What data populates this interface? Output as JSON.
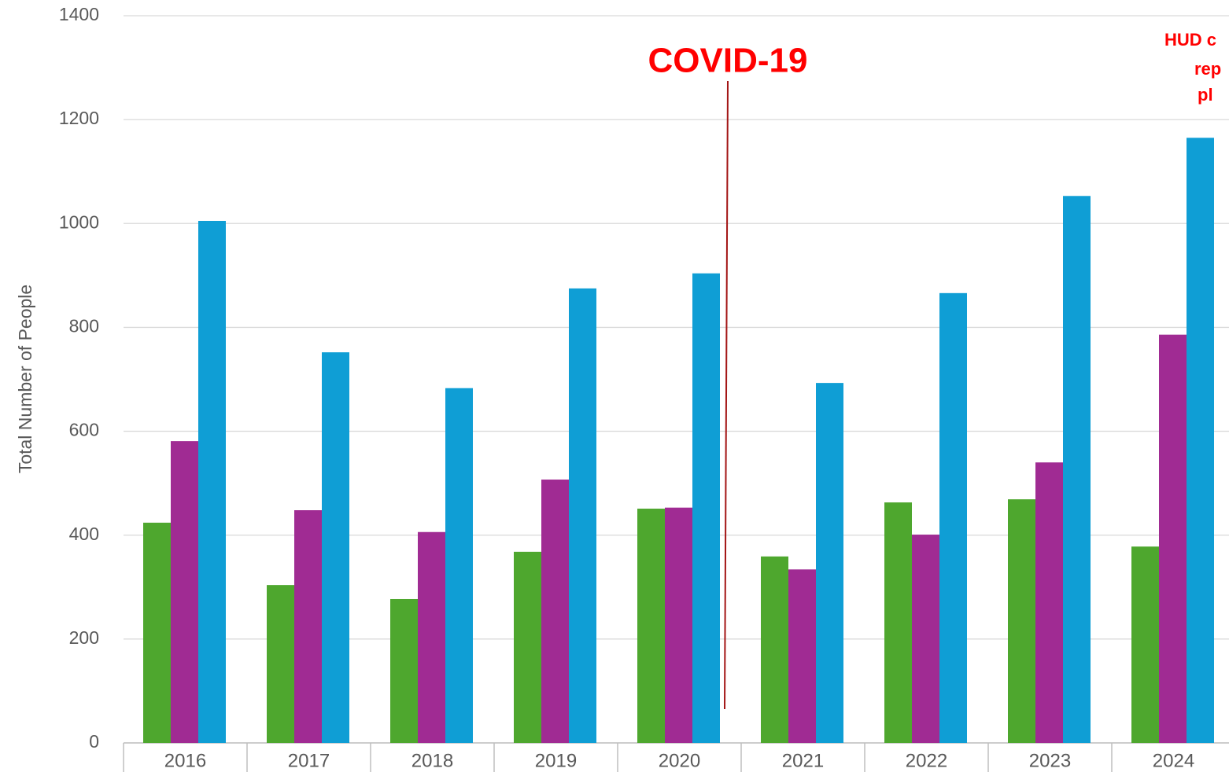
{
  "chart_data": {
    "type": "bar",
    "y_label": "Total Number of People",
    "annotations": [
      "COVID-19",
      "HUD c",
      "rep",
      "pl"
    ],
    "categories": [
      "2016",
      "2017",
      "2018",
      "2019",
      "2020",
      "2021",
      "2022",
      "2023",
      "2024"
    ],
    "series": [
      {
        "color": "#4ea72e",
        "values": [
          424,
          304,
          277,
          368,
          451,
          359,
          463,
          469,
          378
        ]
      },
      {
        "color": "#a02b93",
        "values": [
          581,
          448,
          406,
          507,
          453,
          334,
          401,
          540,
          786
        ]
      },
      {
        "color": "#0f9ed5",
        "values": [
          1005,
          752,
          683,
          875,
          904,
          693,
          866,
          1053,
          1165
        ]
      }
    ],
    "ylim": [
      0,
      1400
    ],
    "yticks": [
      0,
      200,
      400,
      600,
      800,
      1000,
      1200,
      1400
    ],
    "grid": true
  }
}
